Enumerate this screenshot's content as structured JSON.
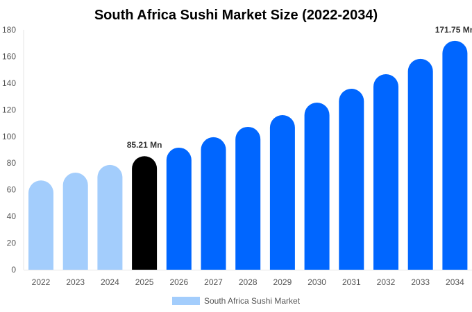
{
  "chart_data": {
    "type": "bar",
    "title": "South Africa Sushi Market Size (2022-2034)",
    "categories": [
      "2022",
      "2023",
      "2024",
      "2025",
      "2026",
      "2027",
      "2028",
      "2029",
      "2030",
      "2031",
      "2032",
      "2033",
      "2034"
    ],
    "values": [
      67,
      72.8,
      78.6,
      85.21,
      91.6,
      99.4,
      107.2,
      116,
      125.4,
      135.8,
      146.7,
      158.2,
      171.75
    ],
    "bar_colors": [
      "#a3cdfc",
      "#a3cdfc",
      "#a3cdfc",
      "#000000",
      "#0066ff",
      "#0066ff",
      "#0066ff",
      "#0066ff",
      "#0066ff",
      "#0066ff",
      "#0066ff",
      "#0066ff",
      "#0066ff"
    ],
    "data_labels": [
      {
        "category": "2025",
        "text": "85.21 Mn"
      },
      {
        "category": "2034",
        "text": "171.75 Mn"
      }
    ],
    "ylim": [
      0,
      180
    ],
    "yticks": [
      0,
      20,
      40,
      60,
      80,
      100,
      120,
      140,
      160,
      180
    ],
    "grid": false,
    "legend": {
      "position": "bottom",
      "entries": [
        {
          "name": "South Africa Sushi Market",
          "color": "#a3cdfc"
        }
      ]
    }
  }
}
